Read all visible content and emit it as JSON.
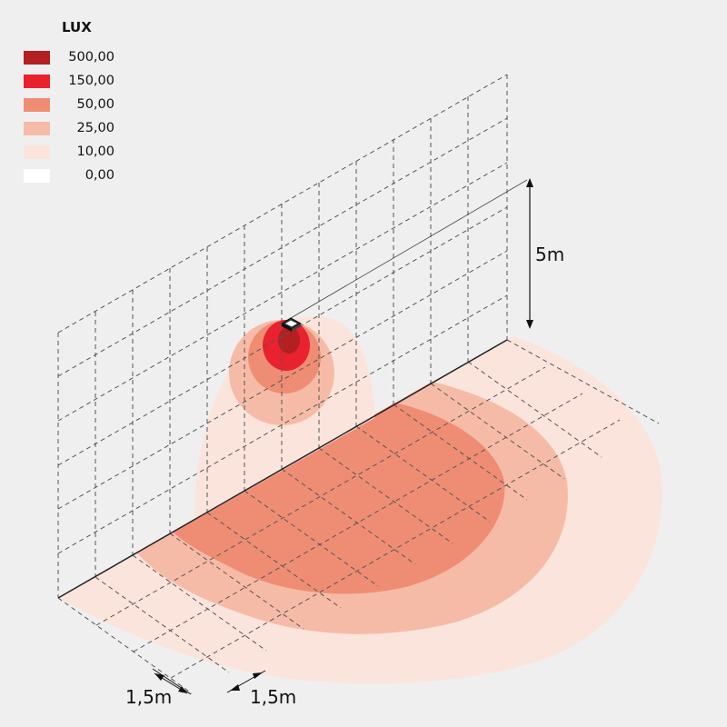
{
  "legend": {
    "title": "LUX",
    "items": [
      {
        "value": "500,00",
        "color": "#b31f22"
      },
      {
        "value": "150,00",
        "color": "#e8222e"
      },
      {
        "value": "50,00",
        "color": "#ef8d74"
      },
      {
        "value": "25,00",
        "color": "#f6bba7"
      },
      {
        "value": "10,00",
        "color": "#fbe4dc"
      },
      {
        "value": "0,00",
        "color": "#ffffff"
      }
    ]
  },
  "dimensions": {
    "height_label": "5m",
    "grid_x_label": "1,5m",
    "grid_y_label": "1,5m"
  }
}
